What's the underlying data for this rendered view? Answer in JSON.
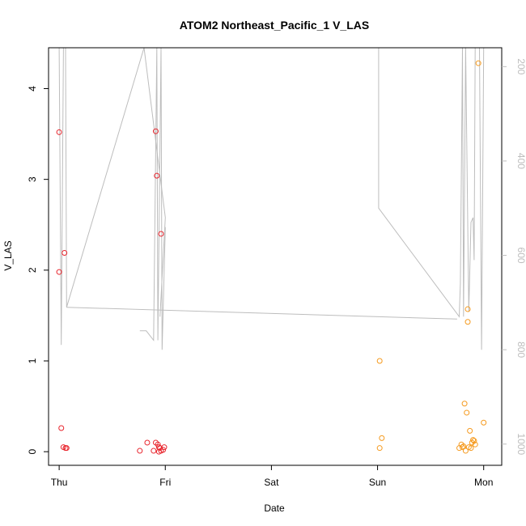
{
  "chart_data": {
    "type": "scatter",
    "title": "ATOM2 Northeast_Pacific_1 V_LAS",
    "xlabel": "Date",
    "ylabel": "V_LAS",
    "x_ticks": [
      {
        "day": 0,
        "label": "Thu"
      },
      {
        "day": 1,
        "label": "Fri"
      },
      {
        "day": 2,
        "label": "Sat"
      },
      {
        "day": 3,
        "label": "Sun"
      },
      {
        "day": 4,
        "label": "Mon"
      }
    ],
    "xlim": [
      -0.1,
      4.17
    ],
    "ylim": [
      -0.15,
      4.45
    ],
    "y_ticks": [
      0,
      1,
      2,
      3,
      4
    ],
    "y2_ticks": [
      200,
      400,
      600,
      800,
      1000
    ],
    "y2lim": [
      1045,
      160
    ],
    "colors": {
      "red": "#e8242c",
      "orange": "#f59a1e",
      "depth_line": "#bdbdbd",
      "axis": "#000000",
      "axis2": "#bdbdbd"
    },
    "series": [
      {
        "color": "red",
        "points": [
          {
            "x": 0.0,
            "y": 3.52
          },
          {
            "x": 0.0,
            "y": 1.98
          },
          {
            "x": 0.05,
            "y": 2.19
          },
          {
            "x": 0.02,
            "y": 0.26
          },
          {
            "x": 0.04,
            "y": 0.05
          },
          {
            "x": 0.06,
            "y": 0.04
          },
          {
            "x": 0.07,
            "y": 0.04
          },
          {
            "x": 0.91,
            "y": 3.53
          },
          {
            "x": 0.92,
            "y": 3.04
          },
          {
            "x": 0.96,
            "y": 2.4
          },
          {
            "x": 0.76,
            "y": 0.01
          },
          {
            "x": 0.83,
            "y": 0.1
          },
          {
            "x": 0.89,
            "y": 0.01
          },
          {
            "x": 0.91,
            "y": 0.1
          },
          {
            "x": 0.93,
            "y": 0.08
          },
          {
            "x": 0.94,
            "y": 0.05
          },
          {
            "x": 0.95,
            "y": 0.04
          },
          {
            "x": 0.96,
            "y": 0.01
          },
          {
            "x": 0.98,
            "y": 0.02
          },
          {
            "x": 0.99,
            "y": 0.05
          },
          {
            "x": 0.94,
            "y": 0.0
          }
        ]
      },
      {
        "color": "orange",
        "points": [
          {
            "x": 3.02,
            "y": 1.0
          },
          {
            "x": 3.04,
            "y": 0.15
          },
          {
            "x": 3.02,
            "y": 0.04
          },
          {
            "x": 3.77,
            "y": 0.04
          },
          {
            "x": 3.79,
            "y": 0.08
          },
          {
            "x": 3.8,
            "y": 0.05
          },
          {
            "x": 3.81,
            "y": 0.06
          },
          {
            "x": 3.82,
            "y": 0.53
          },
          {
            "x": 3.83,
            "y": 0.01
          },
          {
            "x": 3.84,
            "y": 0.43
          },
          {
            "x": 3.85,
            "y": 1.57
          },
          {
            "x": 3.85,
            "y": 1.43
          },
          {
            "x": 3.86,
            "y": 0.05
          },
          {
            "x": 3.87,
            "y": 0.23
          },
          {
            "x": 3.88,
            "y": 0.04
          },
          {
            "x": 3.89,
            "y": 0.1
          },
          {
            "x": 3.9,
            "y": 0.13
          },
          {
            "x": 3.91,
            "y": 0.12
          },
          {
            "x": 3.95,
            "y": 4.28
          },
          {
            "x": 4.0,
            "y": 0.32
          },
          {
            "x": 3.92,
            "y": 0.08
          }
        ]
      }
    ],
    "depth_lines": [
      [
        {
          "x": 0.0,
          "y": 160
        },
        {
          "x": 0.02,
          "y": 790
        },
        {
          "x": 0.04,
          "y": 160
        },
        {
          "x": 0.06,
          "y": 160
        },
        {
          "x": 0.07,
          "y": 710
        },
        {
          "x": 0.8,
          "y": 160
        },
        {
          "x": 1.0,
          "y": 520
        },
        {
          "x": 0.95,
          "y": 730
        }
      ],
      [
        {
          "x": 0.07,
          "y": 710
        },
        {
          "x": 3.75,
          "y": 735
        }
      ],
      [
        {
          "x": 0.76,
          "y": 760
        },
        {
          "x": 0.82,
          "y": 760
        },
        {
          "x": 0.89,
          "y": 780
        },
        {
          "x": 0.92,
          "y": 160
        },
        {
          "x": 0.93,
          "y": 780
        },
        {
          "x": 0.96,
          "y": 160
        },
        {
          "x": 0.97,
          "y": 800
        },
        {
          "x": 1.0,
          "y": 540
        }
      ],
      [
        {
          "x": 3.01,
          "y": 160
        },
        {
          "x": 3.01,
          "y": 500
        },
        {
          "x": 3.77,
          "y": 730
        },
        {
          "x": 3.78,
          "y": 660
        },
        {
          "x": 3.8,
          "y": 160
        },
        {
          "x": 3.81,
          "y": 730
        },
        {
          "x": 3.83,
          "y": 160
        },
        {
          "x": 3.86,
          "y": 720
        },
        {
          "x": 3.88,
          "y": 530
        },
        {
          "x": 3.9,
          "y": 520
        },
        {
          "x": 3.91,
          "y": 610
        },
        {
          "x": 3.92,
          "y": 160
        },
        {
          "x": 3.94,
          "y": 160
        },
        {
          "x": 3.96,
          "y": 160
        },
        {
          "x": 3.98,
          "y": 800
        },
        {
          "x": 4.0,
          "y": 160
        }
      ]
    ]
  }
}
